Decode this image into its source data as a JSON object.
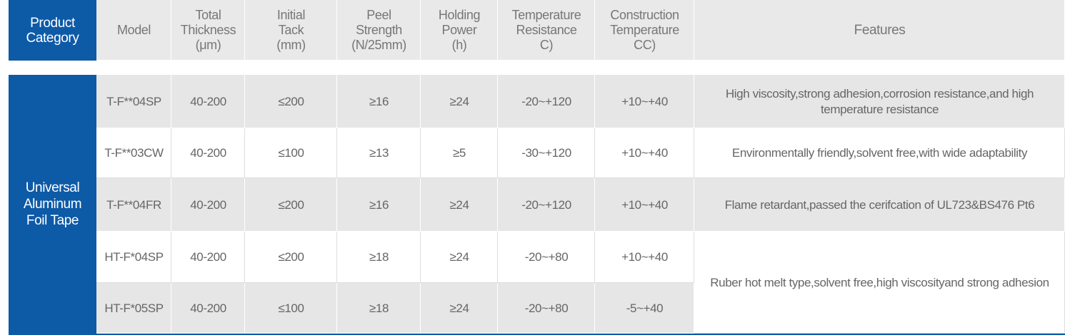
{
  "header": [
    [
      "Product",
      "Category"
    ],
    [
      "Model"
    ],
    [
      "Total",
      "Thickness",
      "(μm)"
    ],
    [
      "Initial",
      "Tack",
      "(mm)"
    ],
    [
      "Peel",
      "Strength",
      "(N/25mm)"
    ],
    [
      "Holding",
      "Power",
      "(h)"
    ],
    [
      "Temperature",
      "Resistance",
      "C)"
    ],
    [
      "Construction",
      "Temperature",
      "CC)"
    ],
    [
      "Features"
    ]
  ],
  "category": "Universal Aluminum Foil Tape",
  "rows": [
    {
      "model": "T-F**04SP",
      "thickness": "40-200",
      "tack": "≤200",
      "peel": "≥16",
      "holding": "≥24",
      "temperature": "-20~+120",
      "construction": "+10~+40",
      "features": "High viscosity,strong adhesion,corrosion resistance,and high temperature resistance"
    },
    {
      "model": "T-F**03CW",
      "thickness": "40-200",
      "tack": "≤100",
      "peel": "≥13",
      "holding": "≥5",
      "temperature": "-30~+120",
      "construction": "+10~+40",
      "features": "Environmentally friendly,solvent free,with wide adaptability"
    },
    {
      "model": "T-F**04FR",
      "thickness": "40-200",
      "tack": "≤200",
      "peel": "≥16",
      "holding": "≥24",
      "temperature": "-20~+120",
      "construction": "+10~+40",
      "features": "Flame retardant,passed the cerifcation of UL723&BS476 Pt6"
    },
    {
      "model": "HT-F*04SP",
      "thickness": "40-200",
      "tack": "≤200",
      "peel": "≥18",
      "holding": "≥24",
      "temperature": "-20~+80",
      "construction": "+10~+40",
      "features": "Ruber hot melt type,solvent free,high viscosityand strong adhesion"
    },
    {
      "model": "HT-F*05SP",
      "thickness": "40-200",
      "tack": "≤100",
      "peel": "≥18",
      "holding": "≥24",
      "temperature": "-20~+80",
      "construction": "-5~+40"
    }
  ]
}
